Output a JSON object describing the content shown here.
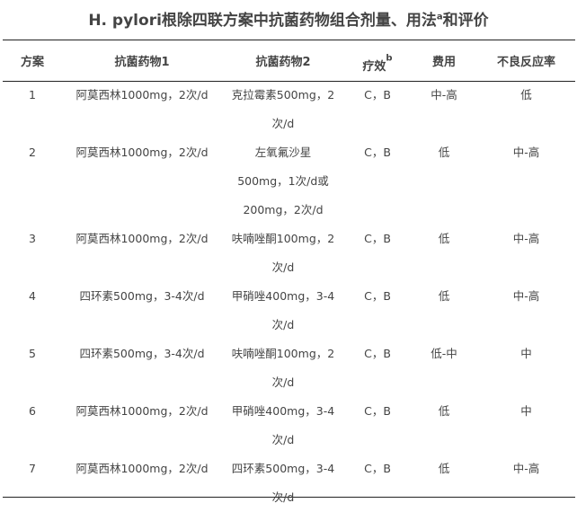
{
  "title": {
    "main": "H. pylori根除四联方案中抗菌药物组合剂量、用法",
    "sup": "a",
    "tail": "和评价"
  },
  "headers": [
    {
      "label": "方案"
    },
    {
      "label": "抗菌药物1"
    },
    {
      "label": "抗菌药物2"
    },
    {
      "label": "疗效",
      "sup": "b"
    },
    {
      "label": "费用"
    },
    {
      "label": "不良反应率"
    }
  ],
  "rows": [
    {
      "no": "1",
      "drug1": "阿莫西林1000mg，2次/d",
      "drug2": [
        "克拉霉素500mg，2",
        "次/d"
      ],
      "efficacy": "C，B",
      "cost": "中-高",
      "adverse": "低"
    },
    {
      "no": "2",
      "drug1": "阿莫西林1000mg，2次/d",
      "drug2": [
        "左氧氟沙星",
        "500mg，1次/d或",
        "200mg，2次/d"
      ],
      "efficacy": "C，B",
      "cost": "低",
      "adverse": "中-高"
    },
    {
      "no": "3",
      "drug1": "阿莫西林1000mg，2次/d",
      "drug2": [
        "呋喃唑酮100mg，2",
        "次/d"
      ],
      "efficacy": "C，B",
      "cost": "低",
      "adverse": "中-高"
    },
    {
      "no": "4",
      "drug1": "四环素500mg，3-4次/d",
      "drug2": [
        "甲硝唑400mg，3-4",
        "次/d"
      ],
      "efficacy": "C，B",
      "cost": "低",
      "adverse": "中-高"
    },
    {
      "no": "5",
      "drug1": "四环素500mg，3-4次/d",
      "drug2": [
        "呋喃唑酮100mg，2",
        "次/d"
      ],
      "efficacy": "C，B",
      "cost": "低-中",
      "adverse": "中"
    },
    {
      "no": "6",
      "drug1": "阿莫西林1000mg，2次/d",
      "drug2": [
        "甲硝唑400mg，3-4",
        "次/d"
      ],
      "efficacy": "C，B",
      "cost": "低",
      "adverse": "中"
    },
    {
      "no": "7",
      "drug1": "阿莫西林1000mg，2次/d",
      "drug2": [
        "四环素500mg，3-4",
        "次/d"
      ],
      "efficacy": "C，B",
      "cost": "低",
      "adverse": "中-高"
    }
  ]
}
